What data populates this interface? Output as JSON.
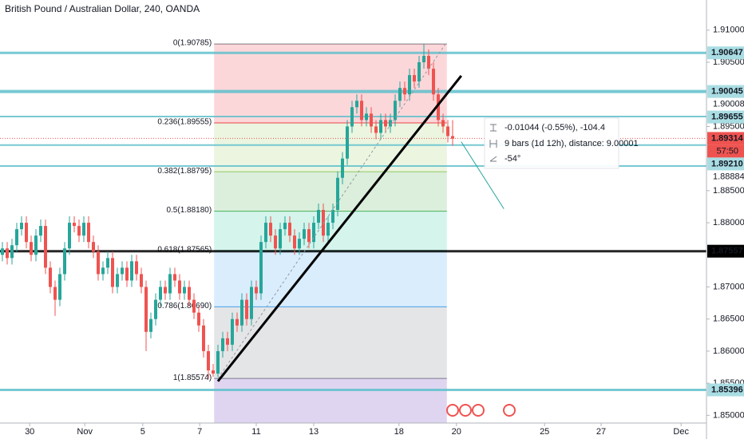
{
  "chart_data": {
    "type": "candlestick",
    "title": "British Pound / Australian Dollar, 240, OANDA",
    "up_color": "#26a69a",
    "down_color": "#ef5350",
    "xlim": [
      -0.5,
      147
    ],
    "ylim": [
      1.8488,
      1.9147
    ],
    "xticks": [
      {
        "value": 5.7,
        "label": "30"
      },
      {
        "value": 17.2,
        "label": "Nov"
      },
      {
        "value": 29.3,
        "label": "5"
      },
      {
        "value": 41.2,
        "label": "7"
      },
      {
        "value": 53,
        "label": "11"
      },
      {
        "value": 65,
        "label": "13"
      },
      {
        "value": 82.8,
        "label": "18"
      },
      {
        "value": 94.8,
        "label": "20"
      },
      {
        "value": 113.2,
        "label": "25"
      },
      {
        "value": 125,
        "label": "27"
      },
      {
        "value": 141.7,
        "label": "Dec"
      }
    ],
    "yticks": [
      {
        "value": 1.91,
        "label": "1.91000"
      },
      {
        "value": 1.905,
        "label": "1.90500"
      },
      {
        "value": 1.895,
        "label": "1.89500"
      },
      {
        "value": 1.885,
        "label": "1.88500"
      },
      {
        "value": 1.88,
        "label": "1.88000"
      },
      {
        "value": 1.87,
        "label": "1.87000"
      },
      {
        "value": 1.865,
        "label": "1.86500"
      },
      {
        "value": 1.86,
        "label": "1.86000"
      },
      {
        "value": 1.855,
        "label": "1.85500"
      },
      {
        "value": 1.85,
        "label": "1.85000"
      }
    ],
    "x": [
      0,
      1,
      2,
      3,
      4,
      5,
      6,
      7,
      8,
      9,
      10,
      11,
      12,
      13,
      14,
      15,
      16,
      17,
      18,
      19,
      20,
      21,
      22,
      23,
      24,
      25,
      26,
      27,
      28,
      29,
      30,
      31,
      32,
      33,
      34,
      35,
      36,
      37,
      38,
      39,
      40,
      41,
      42,
      43,
      44,
      45,
      46,
      47,
      48,
      49,
      50,
      51,
      52,
      53,
      54,
      55,
      56,
      57,
      58,
      59,
      60,
      61,
      62,
      63,
      64,
      65,
      66,
      67,
      68,
      69,
      70,
      71,
      72,
      73,
      74,
      75,
      76,
      77,
      78,
      79,
      80,
      81,
      82,
      83,
      84,
      85,
      86,
      87,
      88,
      89,
      90,
      91,
      92,
      93,
      94
    ],
    "open": [
      1.875,
      1.876,
      1.8745,
      1.8765,
      1.879,
      1.88,
      1.877,
      1.875,
      1.878,
      1.8795,
      1.873,
      1.87,
      1.868,
      1.872,
      1.876,
      1.88,
      1.8795,
      1.878,
      1.88,
      1.877,
      1.8755,
      1.872,
      1.873,
      1.8745,
      1.87,
      1.872,
      1.873,
      1.871,
      1.874,
      1.872,
      1.87,
      1.863,
      1.865,
      1.868,
      1.87,
      1.869,
      1.872,
      1.871,
      1.869,
      1.87,
      1.868,
      1.866,
      1.864,
      1.86,
      1.857,
      1.8565,
      1.86,
      1.862,
      1.861,
      1.865,
      1.864,
      1.868,
      1.865,
      1.87,
      1.869,
      1.877,
      1.88,
      1.878,
      1.876,
      1.879,
      1.88,
      1.878,
      1.876,
      1.8775,
      1.879,
      1.877,
      1.88,
      1.882,
      1.878,
      1.88,
      1.882,
      1.887,
      1.89,
      1.895,
      1.898,
      1.899,
      1.896,
      1.897,
      1.895,
      1.894,
      1.896,
      1.895,
      1.896,
      1.899,
      1.901,
      1.9,
      1.903,
      1.902,
      1.905,
      1.906,
      1.904,
      1.9,
      1.896,
      1.895,
      1.8935
    ],
    "high": [
      1.877,
      1.877,
      1.8775,
      1.88,
      1.881,
      1.881,
      1.878,
      1.879,
      1.8805,
      1.8805,
      1.874,
      1.871,
      1.873,
      1.877,
      1.881,
      1.881,
      1.8805,
      1.881,
      1.881,
      1.878,
      1.8765,
      1.874,
      1.8755,
      1.8755,
      1.873,
      1.874,
      1.874,
      1.875,
      1.875,
      1.873,
      1.871,
      1.866,
      1.869,
      1.871,
      1.871,
      1.873,
      1.873,
      1.872,
      1.871,
      1.871,
      1.869,
      1.867,
      1.865,
      1.861,
      1.858,
      1.861,
      1.863,
      1.863,
      1.866,
      1.866,
      1.869,
      1.869,
      1.871,
      1.871,
      1.878,
      1.881,
      1.881,
      1.879,
      1.88,
      1.881,
      1.881,
      1.879,
      1.8785,
      1.88,
      1.88,
      1.881,
      1.883,
      1.883,
      1.881,
      1.883,
      1.888,
      1.891,
      1.896,
      1.899,
      1.9,
      1.9,
      1.898,
      1.898,
      1.896,
      1.897,
      1.897,
      1.897,
      1.9,
      1.902,
      1.902,
      1.904,
      1.904,
      1.906,
      1.9078,
      1.907,
      1.905,
      1.901,
      1.897,
      1.896,
      1.896
    ],
    "low": [
      1.874,
      1.8735,
      1.8735,
      1.8755,
      1.878,
      1.876,
      1.874,
      1.874,
      1.877,
      1.872,
      1.869,
      1.8655,
      1.867,
      1.871,
      1.875,
      1.8785,
      1.877,
      1.877,
      1.876,
      1.8745,
      1.871,
      1.871,
      1.872,
      1.869,
      1.869,
      1.871,
      1.87,
      1.87,
      1.871,
      1.869,
      1.86,
      1.862,
      1.864,
      1.867,
      1.868,
      1.868,
      1.87,
      1.868,
      1.868,
      1.867,
      1.865,
      1.863,
      1.859,
      1.8557,
      1.856,
      1.856,
      1.859,
      1.86,
      1.86,
      1.863,
      1.863,
      1.864,
      1.864,
      1.868,
      1.868,
      1.876,
      1.877,
      1.875,
      1.875,
      1.878,
      1.877,
      1.875,
      1.875,
      1.8765,
      1.876,
      1.876,
      1.879,
      1.877,
      1.877,
      1.879,
      1.881,
      1.886,
      1.889,
      1.894,
      1.897,
      1.895,
      1.895,
      1.894,
      1.893,
      1.893,
      1.894,
      1.894,
      1.895,
      1.898,
      1.899,
      1.899,
      1.901,
      1.901,
      1.904,
      1.903,
      1.899,
      1.895,
      1.894,
      1.8925,
      1.892
    ],
    "close": [
      1.876,
      1.8745,
      1.8765,
      1.879,
      1.88,
      1.877,
      1.875,
      1.878,
      1.8795,
      1.873,
      1.87,
      1.868,
      1.872,
      1.876,
      1.88,
      1.8795,
      1.878,
      1.88,
      1.877,
      1.8755,
      1.872,
      1.873,
      1.8745,
      1.87,
      1.872,
      1.873,
      1.871,
      1.874,
      1.872,
      1.87,
      1.863,
      1.865,
      1.868,
      1.87,
      1.869,
      1.872,
      1.871,
      1.869,
      1.87,
      1.868,
      1.866,
      1.864,
      1.86,
      1.857,
      1.8565,
      1.86,
      1.862,
      1.861,
      1.865,
      1.864,
      1.868,
      1.865,
      1.87,
      1.869,
      1.877,
      1.88,
      1.878,
      1.876,
      1.879,
      1.88,
      1.878,
      1.876,
      1.8775,
      1.879,
      1.877,
      1.88,
      1.882,
      1.878,
      1.88,
      1.882,
      1.887,
      1.89,
      1.895,
      1.898,
      1.899,
      1.896,
      1.897,
      1.895,
      1.894,
      1.896,
      1.895,
      1.896,
      1.899,
      1.901,
      1.9,
      1.903,
      1.902,
      1.905,
      1.906,
      1.904,
      1.9,
      1.896,
      1.895,
      1.8935,
      1.8931
    ],
    "fib": {
      "x_start": 44.2,
      "x_end": 92.8,
      "extension_color": "#9575cd",
      "levels": [
        {
          "label": "0(1.90785)",
          "value": 1.90785,
          "color": "#787b86"
        },
        {
          "label": "0.236(1.89555)",
          "value": 1.89555,
          "color": "#f23645"
        },
        {
          "label": "0.382(1.88795)",
          "value": 1.88795,
          "color": "#9ccc65"
        },
        {
          "label": "0.5(1.88180)",
          "value": 1.8818,
          "color": "#4caf50"
        },
        {
          "label": "0.618(1.87565)",
          "value": 1.87565,
          "color": "#26c6a0"
        },
        {
          "label": "0.786(1.86690)",
          "value": 1.8669,
          "color": "#42a5f5"
        },
        {
          "label": "1(1.85574)",
          "value": 1.85574,
          "color": "#787b86"
        }
      ]
    },
    "trendlines": [
      {
        "x": [
          45,
          95.8
        ],
        "y": [
          1.8553,
          1.9029
        ],
        "color": "#000000",
        "width": 3
      },
      {
        "x": [
          95.8,
          104.7
        ],
        "y": [
          1.89261,
          1.88217
        ],
        "color": "#26a69a",
        "width": 1
      },
      {
        "x": [
          45,
          92.5
        ],
        "y": [
          1.85574,
          1.90785
        ],
        "color": "#9598a1",
        "width": 1,
        "dashed": true
      }
    ],
    "lines": [
      {
        "value": 1.90647,
        "color": "#5fbfcb",
        "width": 3,
        "style": "box"
      },
      {
        "value": 1.90045,
        "color": "#5fbfcb",
        "width": 4,
        "style": "box"
      },
      {
        "value": 1.90008,
        "style": "plain",
        "label": "1.90008"
      },
      {
        "value": 1.89655,
        "color": "#5fbfcb",
        "width": 2,
        "style": "box"
      },
      {
        "value": 1.8921,
        "label": "1.89210",
        "color": "#5fbfcb",
        "width": 2,
        "style": "box"
      },
      {
        "value": 1.88884,
        "color": "#5fbfcb",
        "width": 2,
        "style": "plain"
      },
      {
        "value": 1.87557,
        "color": "#000000",
        "width": 3,
        "style": "dark"
      },
      {
        "value": 1.85396,
        "color": "#5fbfcb",
        "width": 3,
        "style": "box"
      }
    ],
    "current_price": {
      "value": 1.89314,
      "color": "#ef5350",
      "countdown": "57:50"
    },
    "measure": [
      "-0.01044 (-0.55%), -104.4",
      "9 bars (1d 12h), distance: 9.00001",
      "-54°"
    ]
  }
}
